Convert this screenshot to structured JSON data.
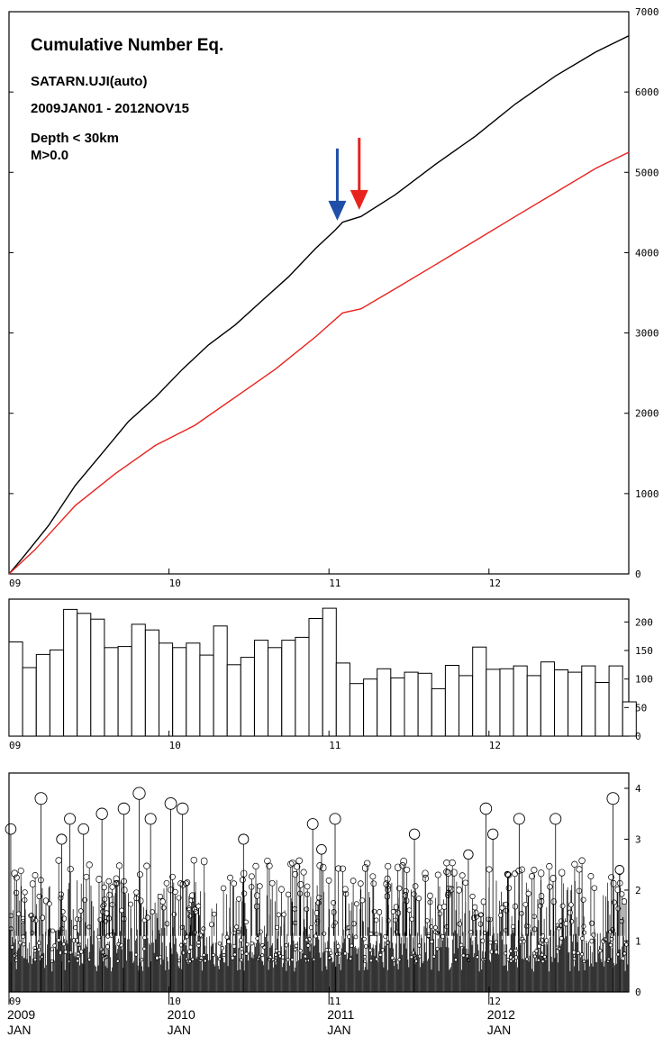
{
  "colors": {
    "axis": "#000000",
    "background": "#ffffff",
    "cum_all": "#000000",
    "cum_decl": "#e8231e",
    "arrow_blue": "#1f4fa8",
    "arrow_red": "#e8231e"
  },
  "chart_data": [
    {
      "type": "line",
      "title": "Cumulative Number Eq.",
      "annotations": [
        "SATARN.UJI(auto)",
        "2009JAN01 - 2012NOV15",
        "Depth < 30km",
        "M>0.0"
      ],
      "x_ticks": [
        "09",
        "10",
        "11",
        "12"
      ],
      "y_ticks": [
        "0",
        "1000",
        "2000",
        "3000",
        "4000",
        "5000",
        "6000",
        "7000"
      ],
      "xlim": [
        "2009-01-01",
        "2012-11-15"
      ],
      "ylim": [
        0,
        7000
      ],
      "y_axis_side": "right",
      "series": [
        {
          "color": "#000000",
          "x": [
            "2009-01-01",
            "2009-02-01",
            "2009-04-01",
            "2009-06-01",
            "2009-08-01",
            "2009-10-01",
            "2009-12-01",
            "2010-02-01",
            "2010-04-01",
            "2010-06-01",
            "2010-08-01",
            "2010-10-01",
            "2010-12-01",
            "2011-01-15",
            "2011-02-01",
            "2011-03-15",
            "2011-06-01",
            "2011-09-01",
            "2011-12-01",
            "2012-03-01",
            "2012-06-01",
            "2012-09-01",
            "2012-11-15"
          ],
          "y": [
            0,
            200,
            600,
            1100,
            1500,
            1900,
            2200,
            2550,
            2850,
            3100,
            3400,
            3700,
            4050,
            4280,
            4380,
            4450,
            4720,
            5100,
            5450,
            5850,
            6200,
            6500,
            6700
          ]
        },
        {
          "color": "#e8231e",
          "x": [
            "2009-01-01",
            "2009-03-01",
            "2009-06-01",
            "2009-09-01",
            "2009-12-01",
            "2010-03-01",
            "2010-06-01",
            "2010-09-01",
            "2010-12-01",
            "2011-02-01",
            "2011-03-15",
            "2011-06-01",
            "2011-09-01",
            "2011-12-01",
            "2012-03-01",
            "2012-06-01",
            "2012-09-01",
            "2012-11-15"
          ],
          "y": [
            0,
            300,
            850,
            1250,
            1600,
            1850,
            2200,
            2550,
            2950,
            3250,
            3300,
            3550,
            3850,
            4150,
            4450,
            4750,
            5050,
            5250
          ]
        }
      ],
      "arrows": [
        {
          "color": "blue",
          "x": "2011-01-20"
        },
        {
          "color": "red",
          "x": "2011-03-11"
        }
      ]
    },
    {
      "type": "bar",
      "x_ticks": [
        "09",
        "10",
        "11",
        "12"
      ],
      "y_ticks": [
        "0",
        "50",
        "100",
        "150",
        "200"
      ],
      "ylim": [
        0,
        240
      ],
      "y_axis_side": "right",
      "values": [
        165,
        120,
        143,
        151,
        222,
        215,
        205,
        155,
        157,
        196,
        186,
        163,
        155,
        163,
        142,
        193,
        125,
        138,
        168,
        155,
        168,
        173,
        206,
        224,
        128,
        92,
        100,
        118,
        102,
        112,
        110,
        83,
        124,
        106,
        156,
        117,
        118,
        123,
        106,
        130,
        116,
        112,
        123,
        94,
        123,
        60
      ]
    },
    {
      "type": "scatter",
      "subtype": "magnitude-time stem plot",
      "x_ticks": [
        "09",
        "10",
        "11",
        "12"
      ],
      "x_tick_captions": [
        {
          "year": "2009",
          "month": "JAN"
        },
        {
          "year": "2010",
          "month": "JAN"
        },
        {
          "year": "2011",
          "month": "JAN"
        },
        {
          "year": "2012",
          "month": "JAN"
        }
      ],
      "y_ticks": [
        "0",
        "1",
        "2",
        "3",
        "4"
      ],
      "ylim": [
        0,
        4.3
      ],
      "y_axis_side": "right",
      "large_events": [
        {
          "x": "2009-01-05",
          "m": 3.2
        },
        {
          "x": "2009-03-15",
          "m": 3.8
        },
        {
          "x": "2009-05-01",
          "m": 3.0
        },
        {
          "x": "2009-05-20",
          "m": 3.4
        },
        {
          "x": "2009-06-20",
          "m": 3.2
        },
        {
          "x": "2009-08-01",
          "m": 3.5
        },
        {
          "x": "2009-09-20",
          "m": 3.6
        },
        {
          "x": "2009-10-25",
          "m": 3.9
        },
        {
          "x": "2009-11-20",
          "m": 3.4
        },
        {
          "x": "2010-01-05",
          "m": 3.7
        },
        {
          "x": "2010-02-01",
          "m": 3.6
        },
        {
          "x": "2010-06-20",
          "m": 3.0
        },
        {
          "x": "2010-11-25",
          "m": 3.3
        },
        {
          "x": "2010-12-15",
          "m": 2.8
        },
        {
          "x": "2011-01-15",
          "m": 3.4
        },
        {
          "x": "2011-07-15",
          "m": 3.1
        },
        {
          "x": "2011-11-15",
          "m": 2.7
        },
        {
          "x": "2011-12-25",
          "m": 3.6
        },
        {
          "x": "2012-01-10",
          "m": 3.1
        },
        {
          "x": "2012-03-10",
          "m": 3.4
        },
        {
          "x": "2012-06-01",
          "m": 3.4
        },
        {
          "x": "2012-10-10",
          "m": 3.8
        },
        {
          "x": "2012-10-25",
          "m": 2.4
        }
      ],
      "background_events_note": ""
    }
  ]
}
